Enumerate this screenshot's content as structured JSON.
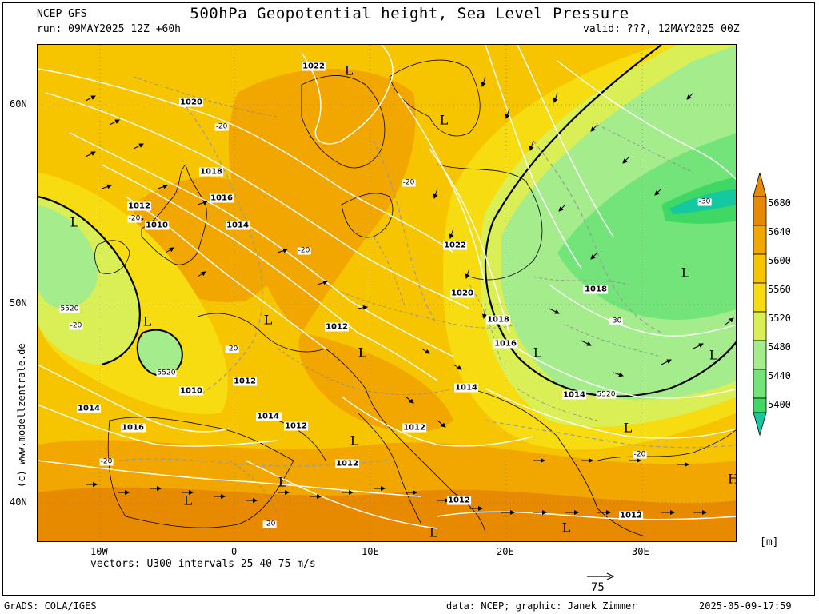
{
  "header": {
    "model": "NCEP GFS",
    "title": "500hPa Geopotential height, Sea Level Pressure",
    "run": "run: 09MAY2025 12Z +60h",
    "valid": "valid: ???, 12MAY2025 00Z"
  },
  "axes": {
    "lat_labels": [
      "60N",
      "50N",
      "40N"
    ],
    "lon_labels": [
      "10W",
      "0",
      "10E",
      "20E",
      "30E"
    ]
  },
  "vectors_note": "vectors: U300 intervals 25 40 75 m/s",
  "vector_scale": "75",
  "legend": {
    "unit": "[m]",
    "levels": [
      "5680",
      "5640",
      "5600",
      "5560",
      "5520",
      "5480",
      "5440",
      "5400"
    ],
    "colors": [
      "#e88a00",
      "#f2a600",
      "#f7c400",
      "#f6dc10",
      "#d9ef55",
      "#a4ec8c",
      "#73e47a",
      "#3fd864",
      "#15c8a0"
    ]
  },
  "vertical_credit": "(c) www.modellzentrale.de",
  "footer": {
    "left": "GrADS: COLA/IGES",
    "center": "data: NCEP; graphic: Janek Zimmer",
    "right": "2025-05-09-17:59"
  },
  "map": {
    "isobar_labels": [
      "1022",
      "1020",
      "1018",
      "1016",
      "1014",
      "1012",
      "1010",
      "1012",
      "1014",
      "1016",
      "1022",
      "1020",
      "1018",
      "1018",
      "1016",
      "1014",
      "1014",
      "1012",
      "1012",
      "1012",
      "1012",
      "1010",
      "1012",
      "1014",
      "1012",
      "1012",
      "1014",
      "1016",
      "1018"
    ],
    "pressure_centers": [
      "L",
      "L",
      "L",
      "L",
      "L",
      "L",
      "L",
      "L",
      "L",
      "L",
      "L",
      "L",
      "L",
      "L",
      "L",
      "L",
      "L",
      "H"
    ],
    "temp_labels": [
      "-20",
      "-20",
      "-20",
      "-20",
      "-20",
      "-30",
      "-30",
      "-20",
      "-20",
      "-20",
      "-20"
    ],
    "height_labels": [
      "5520",
      "5520",
      "5520"
    ]
  }
}
